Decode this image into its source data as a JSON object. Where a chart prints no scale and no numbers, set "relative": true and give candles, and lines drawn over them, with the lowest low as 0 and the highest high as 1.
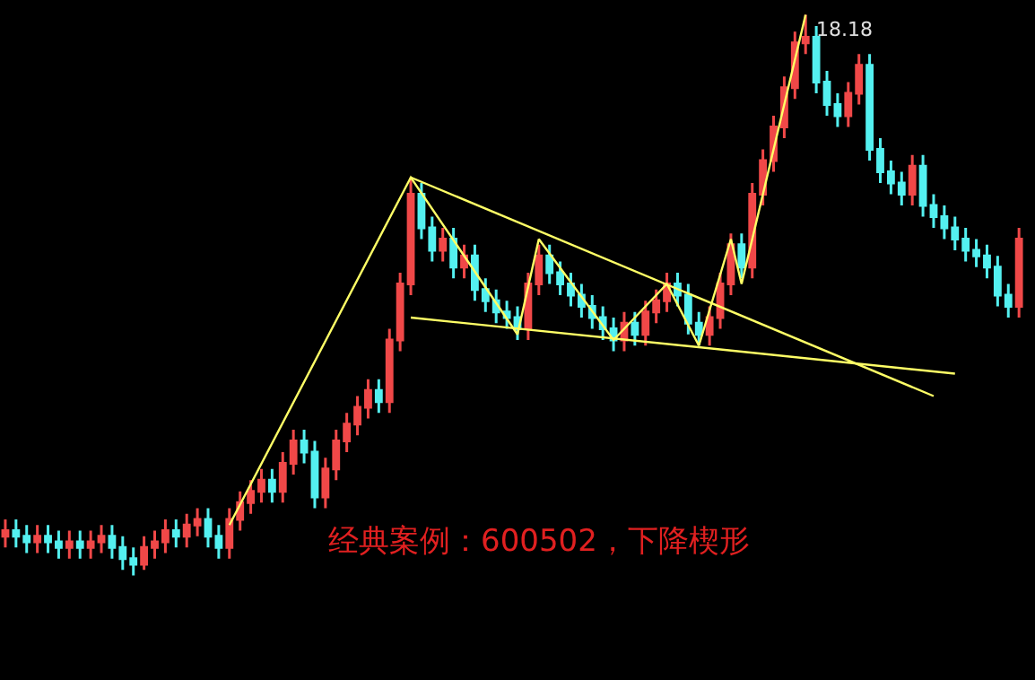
{
  "chart_data": {
    "type": "candlestick",
    "relative": true,
    "categories": [
      null,
      null,
      null,
      null,
      null,
      null,
      null,
      null,
      null,
      null,
      null,
      null,
      null,
      null,
      null,
      null,
      null,
      null,
      null,
      null,
      null,
      null,
      null,
      null,
      null,
      null,
      null,
      null,
      null,
      null,
      null,
      null,
      null,
      null,
      null,
      null,
      null,
      null,
      null,
      null,
      null,
      null,
      null,
      null,
      null,
      null,
      null,
      null,
      null,
      null,
      null,
      null,
      null,
      null,
      null,
      null,
      null,
      null,
      null,
      null,
      null,
      null,
      null,
      null,
      null,
      null,
      null,
      null,
      null,
      null,
      null,
      null,
      null,
      null,
      null,
      null,
      null,
      null,
      null,
      null,
      null,
      null,
      null,
      null,
      null,
      null,
      null,
      null,
      null,
      null,
      null,
      null,
      null,
      null,
      null,
      null
    ],
    "ohlc": [
      [
        0.07,
        0.1,
        0.05,
        0.08
      ],
      [
        0.08,
        0.1,
        0.05,
        0.07
      ],
      [
        0.07,
        0.09,
        0.04,
        0.06
      ],
      [
        0.06,
        0.09,
        0.04,
        0.07
      ],
      [
        0.07,
        0.09,
        0.04,
        0.06
      ],
      [
        0.06,
        0.08,
        0.03,
        0.05
      ],
      [
        0.05,
        0.08,
        0.03,
        0.06
      ],
      [
        0.06,
        0.08,
        0.03,
        0.05
      ],
      [
        0.05,
        0.08,
        0.03,
        0.06
      ],
      [
        0.06,
        0.09,
        0.04,
        0.07
      ],
      [
        0.07,
        0.09,
        0.03,
        0.05
      ],
      [
        0.05,
        0.07,
        0.01,
        0.03
      ],
      [
        0.03,
        0.05,
        0.0,
        0.02
      ],
      [
        0.02,
        0.07,
        0.01,
        0.05
      ],
      [
        0.05,
        0.08,
        0.03,
        0.06
      ],
      [
        0.06,
        0.1,
        0.04,
        0.08
      ],
      [
        0.08,
        0.1,
        0.05,
        0.07
      ],
      [
        0.07,
        0.11,
        0.05,
        0.09
      ],
      [
        0.09,
        0.12,
        0.07,
        0.1
      ],
      [
        0.1,
        0.12,
        0.05,
        0.07
      ],
      [
        0.07,
        0.09,
        0.03,
        0.05
      ],
      [
        0.05,
        0.12,
        0.03,
        0.1
      ],
      [
        0.1,
        0.15,
        0.08,
        0.13
      ],
      [
        0.13,
        0.17,
        0.11,
        0.15
      ],
      [
        0.15,
        0.19,
        0.13,
        0.17
      ],
      [
        0.17,
        0.19,
        0.13,
        0.15
      ],
      [
        0.15,
        0.22,
        0.13,
        0.2
      ],
      [
        0.2,
        0.26,
        0.18,
        0.24
      ],
      [
        0.24,
        0.26,
        0.2,
        0.22
      ],
      [
        0.22,
        0.24,
        0.12,
        0.14
      ],
      [
        0.14,
        0.21,
        0.12,
        0.19
      ],
      [
        0.19,
        0.26,
        0.17,
        0.24
      ],
      [
        0.24,
        0.29,
        0.22,
        0.27
      ],
      [
        0.27,
        0.32,
        0.25,
        0.3
      ],
      [
        0.3,
        0.35,
        0.28,
        0.33
      ],
      [
        0.33,
        0.35,
        0.29,
        0.31
      ],
      [
        0.31,
        0.44,
        0.29,
        0.42
      ],
      [
        0.42,
        0.54,
        0.4,
        0.52
      ],
      [
        0.52,
        0.71,
        0.5,
        0.68
      ],
      [
        0.68,
        0.7,
        0.6,
        0.62
      ],
      [
        0.62,
        0.64,
        0.56,
        0.58
      ],
      [
        0.58,
        0.62,
        0.56,
        0.6
      ],
      [
        0.6,
        0.62,
        0.53,
        0.55
      ],
      [
        0.55,
        0.59,
        0.53,
        0.57
      ],
      [
        0.57,
        0.59,
        0.49,
        0.51
      ],
      [
        0.51,
        0.53,
        0.47,
        0.49
      ],
      [
        0.49,
        0.51,
        0.45,
        0.47
      ],
      [
        0.47,
        0.49,
        0.44,
        0.46
      ],
      [
        0.46,
        0.48,
        0.42,
        0.44
      ],
      [
        0.44,
        0.54,
        0.42,
        0.52
      ],
      [
        0.52,
        0.59,
        0.5,
        0.57
      ],
      [
        0.57,
        0.59,
        0.52,
        0.54
      ],
      [
        0.54,
        0.56,
        0.5,
        0.52
      ],
      [
        0.52,
        0.54,
        0.48,
        0.5
      ],
      [
        0.5,
        0.52,
        0.46,
        0.48
      ],
      [
        0.48,
        0.5,
        0.44,
        0.46
      ],
      [
        0.46,
        0.48,
        0.42,
        0.44
      ],
      [
        0.44,
        0.46,
        0.4,
        0.42
      ],
      [
        0.42,
        0.47,
        0.4,
        0.45
      ],
      [
        0.45,
        0.47,
        0.41,
        0.43
      ],
      [
        0.43,
        0.49,
        0.41,
        0.47
      ],
      [
        0.47,
        0.51,
        0.45,
        0.49
      ],
      [
        0.49,
        0.54,
        0.47,
        0.52
      ],
      [
        0.52,
        0.54,
        0.48,
        0.5
      ],
      [
        0.5,
        0.52,
        0.43,
        0.45
      ],
      [
        0.45,
        0.47,
        0.41,
        0.43
      ],
      [
        0.43,
        0.48,
        0.41,
        0.46
      ],
      [
        0.46,
        0.54,
        0.44,
        0.52
      ],
      [
        0.52,
        0.61,
        0.5,
        0.59
      ],
      [
        0.59,
        0.61,
        0.53,
        0.55
      ],
      [
        0.55,
        0.7,
        0.53,
        0.68
      ],
      [
        0.68,
        0.76,
        0.66,
        0.74
      ],
      [
        0.74,
        0.82,
        0.72,
        0.8
      ],
      [
        0.8,
        0.89,
        0.78,
        0.87
      ],
      [
        0.87,
        0.97,
        0.85,
        0.95
      ],
      [
        0.95,
        1.0,
        0.93,
        0.96
      ],
      [
        0.96,
        0.98,
        0.86,
        0.88
      ],
      [
        0.88,
        0.9,
        0.82,
        0.84
      ],
      [
        0.84,
        0.86,
        0.8,
        0.82
      ],
      [
        0.82,
        0.88,
        0.8,
        0.86
      ],
      [
        0.86,
        0.93,
        0.84,
        0.91
      ],
      [
        0.91,
        0.93,
        0.74,
        0.76
      ],
      [
        0.76,
        0.78,
        0.7,
        0.72
      ],
      [
        0.72,
        0.74,
        0.68,
        0.7
      ],
      [
        0.7,
        0.72,
        0.66,
        0.68
      ],
      [
        0.68,
        0.75,
        0.66,
        0.73
      ],
      [
        0.73,
        0.75,
        0.64,
        0.66
      ],
      [
        0.66,
        0.68,
        0.62,
        0.64
      ],
      [
        0.64,
        0.66,
        0.6,
        0.62
      ],
      [
        0.62,
        0.64,
        0.58,
        0.6
      ],
      [
        0.6,
        0.62,
        0.56,
        0.58
      ],
      [
        0.58,
        0.6,
        0.55,
        0.57
      ],
      [
        0.57,
        0.59,
        0.53,
        0.55
      ],
      [
        0.55,
        0.57,
        0.48,
        0.5
      ],
      [
        0.5,
        0.52,
        0.46,
        0.48
      ],
      [
        0.48,
        0.62,
        0.46,
        0.6
      ]
    ],
    "colors": [
      "#f04848",
      "#54f0f0",
      "#54f0f0",
      "#f04848",
      "#54f0f0",
      "#54f0f0",
      "#f04848",
      "#54f0f0",
      "#f04848",
      "#f04848",
      "#54f0f0",
      "#54f0f0",
      "#54f0f0",
      "#f04848",
      "#f04848",
      "#f04848",
      "#54f0f0",
      "#f04848",
      "#f04848",
      "#54f0f0",
      "#54f0f0",
      "#f04848",
      "#f04848",
      "#f04848",
      "#f04848",
      "#54f0f0",
      "#f04848",
      "#f04848",
      "#54f0f0",
      "#54f0f0",
      "#f04848",
      "#f04848",
      "#f04848",
      "#f04848",
      "#f04848",
      "#54f0f0",
      "#f04848",
      "#f04848",
      "#f04848",
      "#54f0f0",
      "#54f0f0",
      "#f04848",
      "#54f0f0",
      "#f04848",
      "#54f0f0",
      "#54f0f0",
      "#54f0f0",
      "#54f0f0",
      "#54f0f0",
      "#f04848",
      "#f04848",
      "#54f0f0",
      "#54f0f0",
      "#54f0f0",
      "#54f0f0",
      "#54f0f0",
      "#54f0f0",
      "#54f0f0",
      "#f04848",
      "#54f0f0",
      "#f04848",
      "#f04848",
      "#f04848",
      "#54f0f0",
      "#54f0f0",
      "#54f0f0",
      "#f04848",
      "#f04848",
      "#f04848",
      "#54f0f0",
      "#f04848",
      "#f04848",
      "#f04848",
      "#f04848",
      "#f04848",
      "#f04848",
      "#54f0f0",
      "#54f0f0",
      "#54f0f0",
      "#f04848",
      "#f04848",
      "#54f0f0",
      "#54f0f0",
      "#54f0f0",
      "#54f0f0",
      "#f04848",
      "#54f0f0",
      "#54f0f0",
      "#54f0f0",
      "#54f0f0",
      "#54f0f0",
      "#54f0f0",
      "#54f0f0",
      "#54f0f0",
      "#54f0f0",
      "#f04848"
    ],
    "series": [
      {
        "type": "line",
        "color": "#ffff66",
        "values": [
          null,
          null,
          null,
          null,
          null,
          null,
          null,
          null,
          null,
          null,
          null,
          null,
          null,
          null,
          null,
          null,
          null,
          null,
          null,
          null,
          null,
          0.09,
          null,
          null,
          null,
          null,
          null,
          null,
          null,
          null,
          null,
          null,
          null,
          null,
          null,
          null,
          null,
          null,
          0.71,
          null,
          null,
          null,
          null,
          null,
          null,
          null,
          null,
          null,
          0.43,
          null,
          0.6,
          null,
          null,
          null,
          null,
          null,
          null,
          0.42,
          null,
          null,
          null,
          null,
          0.52,
          null,
          null,
          0.41,
          null,
          null,
          0.6,
          0.52,
          null,
          null,
          null,
          null,
          null,
          1.0,
          null,
          null,
          null,
          null,
          null,
          null,
          null,
          null,
          null,
          null,
          null,
          null,
          null,
          null,
          null,
          null,
          null,
          null,
          null,
          null
        ]
      },
      {
        "type": "line",
        "color": "#ffff66",
        "values": [
          null,
          null,
          null,
          null,
          null,
          null,
          null,
          null,
          null,
          null,
          null,
          null,
          null,
          null,
          null,
          null,
          null,
          null,
          null,
          null,
          null,
          null,
          null,
          null,
          null,
          null,
          null,
          null,
          null,
          null,
          null,
          null,
          null,
          null,
          null,
          null,
          null,
          null,
          0.71,
          null,
          null,
          null,
          null,
          null,
          null,
          null,
          null,
          null,
          null,
          null,
          null,
          null,
          null,
          null,
          null,
          null,
          null,
          null,
          null,
          null,
          null,
          null,
          null,
          null,
          null,
          null,
          null,
          null,
          null,
          null,
          null,
          null,
          null,
          null,
          null,
          null,
          null,
          null,
          null,
          null,
          null,
          null,
          null,
          null,
          null,
          null,
          null,
          0.32,
          null,
          null,
          null,
          null,
          null,
          null,
          null,
          null
        ]
      },
      {
        "type": "line",
        "color": "#ffff66",
        "values": [
          null,
          null,
          null,
          null,
          null,
          null,
          null,
          null,
          null,
          null,
          null,
          null,
          null,
          null,
          null,
          null,
          null,
          null,
          null,
          null,
          null,
          null,
          null,
          null,
          null,
          null,
          null,
          null,
          null,
          null,
          null,
          null,
          null,
          null,
          null,
          null,
          null,
          null,
          0.46,
          null,
          null,
          null,
          null,
          null,
          null,
          null,
          null,
          null,
          null,
          null,
          null,
          null,
          null,
          null,
          null,
          null,
          null,
          null,
          null,
          null,
          null,
          null,
          null,
          null,
          null,
          null,
          null,
          null,
          null,
          null,
          null,
          null,
          null,
          null,
          null,
          null,
          null,
          null,
          null,
          null,
          null,
          null,
          null,
          null,
          null,
          null,
          null,
          null,
          null,
          0.36,
          null,
          null,
          null,
          null,
          null,
          null
        ]
      }
    ],
    "annotations": [
      "18.18",
      "经典案例：600502，下降楔形"
    ]
  }
}
